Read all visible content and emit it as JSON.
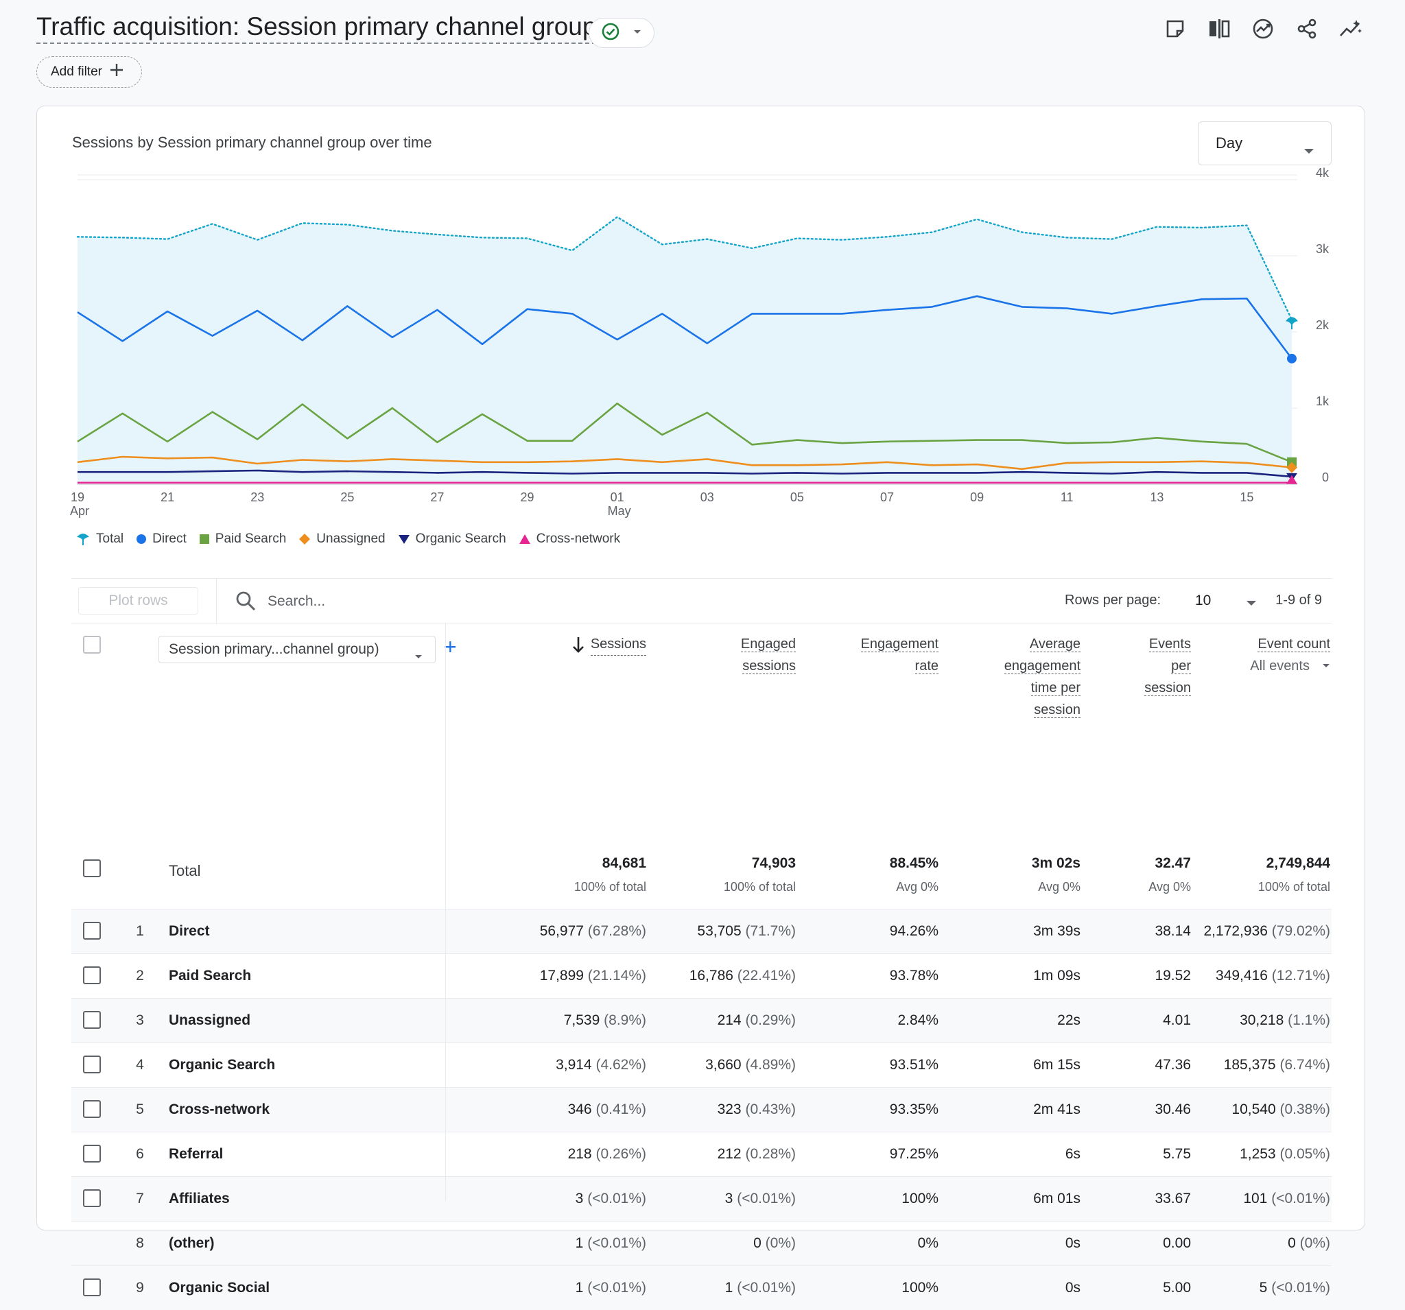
{
  "header": {
    "title": "Traffic acquisition: Session primary channel group",
    "add_filter_label": "Add filter",
    "actions": [
      "edit-report-icon",
      "compare-icon",
      "insights-icon",
      "share-icon",
      "anomaly-icon"
    ]
  },
  "chart_card": {
    "title": "Sessions by Session primary channel group over time",
    "period": "Day"
  },
  "chart_data": {
    "type": "line",
    "title": "Sessions by Session primary channel group over time",
    "x_tick_labels": [
      {
        "day": "19",
        "month": "Apr"
      },
      {
        "day": "21",
        "month": ""
      },
      {
        "day": "23",
        "month": ""
      },
      {
        "day": "25",
        "month": ""
      },
      {
        "day": "27",
        "month": ""
      },
      {
        "day": "29",
        "month": ""
      },
      {
        "day": "01",
        "month": "May"
      },
      {
        "day": "03",
        "month": ""
      },
      {
        "day": "05",
        "month": ""
      },
      {
        "day": "07",
        "month": ""
      },
      {
        "day": "09",
        "month": ""
      },
      {
        "day": "11",
        "month": ""
      },
      {
        "day": "13",
        "month": ""
      },
      {
        "day": "15",
        "month": ""
      }
    ],
    "y_tick_labels": [
      "0",
      "1k",
      "2k",
      "3k",
      "4k"
    ],
    "ylim": [
      0,
      4000
    ],
    "legend_position": "bottom-left",
    "series": [
      {
        "name": "Total",
        "color": "#12a4c9",
        "style": "dotted-area",
        "values": [
          3250,
          3240,
          3220,
          3420,
          3210,
          3430,
          3410,
          3330,
          3280,
          3240,
          3230,
          3070,
          3510,
          3150,
          3220,
          3100,
          3230,
          3210,
          3250,
          3310,
          3480,
          3310,
          3240,
          3220,
          3380,
          3370,
          3400,
          2160
        ]
      },
      {
        "name": "Direct",
        "color": "#1a73e8",
        "style": "line",
        "values": [
          2260,
          1880,
          2270,
          1950,
          2280,
          1890,
          2340,
          1930,
          2290,
          1840,
          2300,
          2240,
          1900,
          2240,
          1850,
          2240,
          2240,
          2240,
          2290,
          2330,
          2470,
          2330,
          2310,
          2240,
          2340,
          2430,
          2440,
          1650
        ]
      },
      {
        "name": "Paid Search",
        "color": "#6aa342",
        "style": "line",
        "values": [
          560,
          930,
          560,
          950,
          590,
          1050,
          600,
          1000,
          550,
          920,
          570,
          570,
          1060,
          650,
          940,
          520,
          580,
          540,
          560,
          570,
          580,
          580,
          540,
          550,
          610,
          560,
          530,
          290
        ]
      },
      {
        "name": "Unassigned",
        "color": "#ee8e1e",
        "style": "line",
        "values": [
          290,
          360,
          340,
          350,
          270,
          320,
          300,
          330,
          310,
          290,
          290,
          300,
          330,
          290,
          330,
          250,
          250,
          260,
          290,
          250,
          260,
          200,
          280,
          290,
          290,
          300,
          280,
          220
        ]
      },
      {
        "name": "Organic Search",
        "color": "#1a237e",
        "style": "line",
        "values": [
          160,
          160,
          160,
          170,
          180,
          160,
          170,
          160,
          150,
          160,
          150,
          140,
          150,
          150,
          150,
          140,
          150,
          140,
          150,
          150,
          150,
          160,
          150,
          140,
          160,
          150,
          150,
          100
        ]
      },
      {
        "name": "Cross-network",
        "color": "#e52592",
        "style": "line",
        "values": [
          20,
          20,
          20,
          20,
          20,
          20,
          20,
          20,
          20,
          20,
          20,
          20,
          20,
          20,
          20,
          20,
          20,
          20,
          20,
          20,
          20,
          20,
          20,
          20,
          20,
          20,
          20,
          20
        ]
      }
    ]
  },
  "table": {
    "plot_rows_label": "Plot rows",
    "search_placeholder": "Search...",
    "rows_per_page_label": "Rows per page:",
    "rows_per_page_value": "10",
    "pager_text": "1-9 of 9",
    "dimension_select": "Session primary...channel group)",
    "headers": {
      "sessions": "Sessions",
      "engaged": [
        "Engaged",
        "sessions"
      ],
      "engagement_rate": [
        "Engagement",
        "rate"
      ],
      "avg_time": [
        "Average",
        "engagement",
        "time per",
        "session"
      ],
      "events_per_session": [
        "Events",
        "per",
        "session"
      ],
      "event_count": "Event count",
      "event_filter": "All events"
    },
    "total": {
      "label": "Total",
      "sessions": "84,681",
      "sessions_sub": "100% of total",
      "engaged": "74,903",
      "engaged_sub": "100% of total",
      "rate": "88.45%",
      "rate_sub": "Avg 0%",
      "time": "3m 02s",
      "time_sub": "Avg 0%",
      "eps": "32.47",
      "eps_sub": "Avg 0%",
      "events": "2,749,844",
      "events_sub": "100% of total"
    },
    "rows": [
      {
        "idx": "1",
        "name": "Direct",
        "s": "56,977",
        "sp": "(67.28%)",
        "e": "53,705",
        "ep": "(71.7%)",
        "r": "94.26%",
        "t": "3m 39s",
        "eps": "38.14",
        "ev": "2,172,936",
        "evp": "(79.02%)",
        "cb": true
      },
      {
        "idx": "2",
        "name": "Paid Search",
        "s": "17,899",
        "sp": "(21.14%)",
        "e": "16,786",
        "ep": "(22.41%)",
        "r": "93.78%",
        "t": "1m 09s",
        "eps": "19.52",
        "ev": "349,416",
        "evp": "(12.71%)",
        "cb": true
      },
      {
        "idx": "3",
        "name": "Unassigned",
        "s": "7,539",
        "sp": "(8.9%)",
        "e": "214",
        "ep": "(0.29%)",
        "r": "2.84%",
        "t": "22s",
        "eps": "4.01",
        "ev": "30,218",
        "evp": "(1.1%)",
        "cb": true
      },
      {
        "idx": "4",
        "name": "Organic Search",
        "s": "3,914",
        "sp": "(4.62%)",
        "e": "3,660",
        "ep": "(4.89%)",
        "r": "93.51%",
        "t": "6m 15s",
        "eps": "47.36",
        "ev": "185,375",
        "evp": "(6.74%)",
        "cb": true
      },
      {
        "idx": "5",
        "name": "Cross-network",
        "s": "346",
        "sp": "(0.41%)",
        "e": "323",
        "ep": "(0.43%)",
        "r": "93.35%",
        "t": "2m 41s",
        "eps": "30.46",
        "ev": "10,540",
        "evp": "(0.38%)",
        "cb": true
      },
      {
        "idx": "6",
        "name": "Referral",
        "s": "218",
        "sp": "(0.26%)",
        "e": "212",
        "ep": "(0.28%)",
        "r": "97.25%",
        "t": "6s",
        "eps": "5.75",
        "ev": "1,253",
        "evp": "(0.05%)",
        "cb": true
      },
      {
        "idx": "7",
        "name": "Affiliates",
        "s": "3",
        "sp": "(<0.01%)",
        "e": "3",
        "ep": "(<0.01%)",
        "r": "100%",
        "t": "6m 01s",
        "eps": "33.67",
        "ev": "101",
        "evp": "(<0.01%)",
        "cb": true
      },
      {
        "idx": "8",
        "name": "(other)",
        "s": "1",
        "sp": "(<0.01%)",
        "e": "0",
        "ep": "(0%)",
        "r": "0%",
        "t": "0s",
        "eps": "0.00",
        "ev": "0",
        "evp": "(0%)",
        "cb": false
      },
      {
        "idx": "9",
        "name": "Organic Social",
        "s": "1",
        "sp": "(<0.01%)",
        "e": "1",
        "ep": "(<0.01%)",
        "r": "100%",
        "t": "0s",
        "eps": "5.00",
        "ev": "5",
        "evp": "(<0.01%)",
        "cb": true
      }
    ]
  }
}
